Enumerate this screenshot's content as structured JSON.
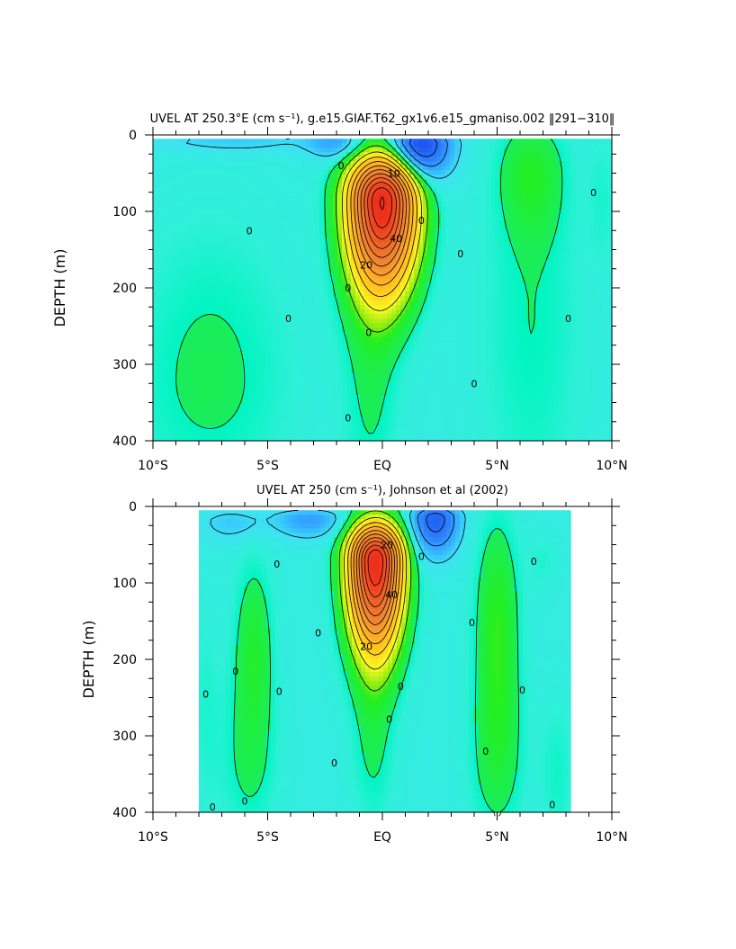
{
  "chart_data": [
    {
      "type": "heatmap",
      "title": "UVEL AT 250.3°E (cm s⁻¹), g.e15.GIAF.T62_gx1v6.e15_gmaniso.002 ‖291−310‖",
      "xlabel": "",
      "ylabel": "DEPTH (m)",
      "xlim": [
        -10,
        10
      ],
      "ylim": [
        400,
        0
      ],
      "x_ticks": [
        -10,
        -5,
        0,
        5,
        10
      ],
      "x_tick_labels": [
        "10°S",
        "5°S",
        "EQ",
        "5°N",
        "10°N"
      ],
      "y_ticks": [
        0,
        100,
        200,
        300,
        400
      ],
      "y_tick_labels": [
        "0",
        "100",
        "200",
        "300",
        "400"
      ],
      "data_extent_x": [
        -10,
        10
      ],
      "data_extent_y": [
        5,
        400
      ],
      "contour_interval": 10,
      "background_value": -5,
      "features": [
        {
          "kind": "jet",
          "cx": 0.0,
          "cy": 85,
          "rx": 1.4,
          "ry_up": 55,
          "ry_down": 110,
          "peak": 115
        },
        {
          "kind": "countercurrent",
          "cx": 1.6,
          "cy": 12,
          "rx": 1.3,
          "ry_up": 20,
          "ry_down": 45,
          "peak": -38
        },
        {
          "kind": "countercurrent",
          "cx": -2.0,
          "cy": 8,
          "rx": 1.2,
          "ry_up": 10,
          "ry_down": 25,
          "peak": -14
        },
        {
          "kind": "countercurrent",
          "cx": -6.5,
          "cy": 8,
          "rx": 3.5,
          "ry_up": 10,
          "ry_down": 15,
          "peak": -8
        },
        {
          "kind": "positive",
          "cx": 6.5,
          "cy": 50,
          "rx": 1.3,
          "ry_up": 60,
          "ry_down": 80,
          "peak": 9
        },
        {
          "kind": "positive",
          "cx": 6.5,
          "cy": 250,
          "rx": 2.2,
          "ry_up": 250,
          "ry_down": 250,
          "peak": 5
        },
        {
          "kind": "positive",
          "cx": -7.5,
          "cy": 320,
          "rx": 3.5,
          "ry_up": 200,
          "ry_down": 150,
          "peak": 6
        },
        {
          "kind": "positive",
          "cx": -0.5,
          "cy": 300,
          "rx": 1.2,
          "ry_up": 200,
          "ry_down": 200,
          "peak": 6
        },
        {
          "kind": "positive",
          "cx": 9.6,
          "cy": 80,
          "rx": 0.6,
          "ry_up": 80,
          "ry_down": 100,
          "peak": 3
        }
      ],
      "labels": [
        {
          "text": "0",
          "x": -1.8,
          "y": 40
        },
        {
          "text": "10",
          "x": 0.5,
          "y": 50
        },
        {
          "text": "0",
          "x": -5.8,
          "y": 125
        },
        {
          "text": "0",
          "x": 1.7,
          "y": 112
        },
        {
          "text": "0",
          "x": 9.2,
          "y": 75
        },
        {
          "text": "0",
          "x": 3.4,
          "y": 155
        },
        {
          "text": "40",
          "x": 0.6,
          "y": 135
        },
        {
          "text": "20",
          "x": -0.7,
          "y": 170
        },
        {
          "text": "0",
          "x": -1.5,
          "y": 200
        },
        {
          "text": "0",
          "x": -4.1,
          "y": 240
        },
        {
          "text": "0",
          "x": 8.1,
          "y": 240
        },
        {
          "text": "0",
          "x": -0.6,
          "y": 258
        },
        {
          "text": "0",
          "x": 4.0,
          "y": 325
        },
        {
          "text": "0",
          "x": -1.5,
          "y": 370
        }
      ]
    },
    {
      "type": "heatmap",
      "title": "UVEL AT 250 (cm s⁻¹), Johnson et al (2002)",
      "xlabel": "",
      "ylabel": "DEPTH (m)",
      "xlim": [
        -10,
        10
      ],
      "ylim": [
        400,
        0
      ],
      "x_ticks": [
        -10,
        -5,
        0,
        5,
        10
      ],
      "x_tick_labels": [
        "10°S",
        "5°S",
        "EQ",
        "5°N",
        "10°N"
      ],
      "y_ticks": [
        0,
        100,
        200,
        300,
        400
      ],
      "y_tick_labels": [
        "0",
        "100",
        "200",
        "300",
        "400"
      ],
      "data_extent_x": [
        -8,
        8.2
      ],
      "data_extent_y": [
        5,
        400
      ],
      "contour_interval": 10,
      "background_value": -5,
      "features": [
        {
          "kind": "jet",
          "cx": -0.3,
          "cy": 70,
          "rx": 1.1,
          "ry_up": 45,
          "ry_down": 110,
          "peak": 115
        },
        {
          "kind": "countercurrent",
          "cx": 2.3,
          "cy": 15,
          "rx": 1.0,
          "ry_up": 15,
          "ry_down": 45,
          "peak": -30
        },
        {
          "kind": "countercurrent",
          "cx": -3.2,
          "cy": 15,
          "rx": 1.4,
          "ry_up": 10,
          "ry_down": 25,
          "peak": -15
        },
        {
          "kind": "countercurrent",
          "cx": -6.5,
          "cy": 20,
          "rx": 1.5,
          "ry_up": 15,
          "ry_down": 25,
          "peak": -8
        },
        {
          "kind": "positive",
          "cx": 5.0,
          "cy": 150,
          "rx": 0.9,
          "ry_up": 130,
          "ry_down": 170,
          "peak": 12
        },
        {
          "kind": "positive",
          "cx": 5.0,
          "cy": 330,
          "rx": 1.2,
          "ry_up": 120,
          "ry_down": 100,
          "peak": 6
        },
        {
          "kind": "positive",
          "cx": -5.6,
          "cy": 180,
          "rx": 0.8,
          "ry_up": 110,
          "ry_down": 110,
          "peak": 9
        },
        {
          "kind": "positive",
          "cx": -5.8,
          "cy": 330,
          "rx": 1.2,
          "ry_up": 120,
          "ry_down": 100,
          "peak": 6
        },
        {
          "kind": "positive",
          "cx": -0.4,
          "cy": 300,
          "rx": 0.9,
          "ry_up": 130,
          "ry_down": 120,
          "peak": 6
        },
        {
          "kind": "positive",
          "cx": -7.7,
          "cy": 260,
          "rx": 0.6,
          "ry_up": 130,
          "ry_down": 160,
          "peak": 3
        },
        {
          "kind": "positive",
          "cx": 7.6,
          "cy": 350,
          "rx": 0.7,
          "ry_up": 100,
          "ry_down": 100,
          "peak": 4
        },
        {
          "kind": "positive",
          "cx": 7.0,
          "cy": 70,
          "rx": 0.6,
          "ry_up": 30,
          "ry_down": 40,
          "peak": 3
        }
      ],
      "labels": [
        {
          "text": "0",
          "x": -4.6,
          "y": 75
        },
        {
          "text": "20",
          "x": 0.2,
          "y": 50
        },
        {
          "text": "0",
          "x": 1.7,
          "y": 65
        },
        {
          "text": "0",
          "x": 6.6,
          "y": 72
        },
        {
          "text": "40",
          "x": 0.4,
          "y": 115
        },
        {
          "text": "0",
          "x": 3.9,
          "y": 152
        },
        {
          "text": "0",
          "x": -2.8,
          "y": 165
        },
        {
          "text": "20",
          "x": -0.7,
          "y": 183
        },
        {
          "text": "0",
          "x": -6.4,
          "y": 215
        },
        {
          "text": "0",
          "x": 0.8,
          "y": 235
        },
        {
          "text": "0",
          "x": -7.7,
          "y": 245
        },
        {
          "text": "0",
          "x": -4.5,
          "y": 242
        },
        {
          "text": "0",
          "x": 6.1,
          "y": 240
        },
        {
          "text": "0",
          "x": 0.3,
          "y": 278
        },
        {
          "text": "0",
          "x": 4.5,
          "y": 320
        },
        {
          "text": "0",
          "x": -2.1,
          "y": 335
        },
        {
          "text": "0",
          "x": -6.0,
          "y": 385
        },
        {
          "text": "0",
          "x": 7.4,
          "y": 390
        },
        {
          "text": "0",
          "x": -7.4,
          "y": 393
        }
      ]
    }
  ]
}
